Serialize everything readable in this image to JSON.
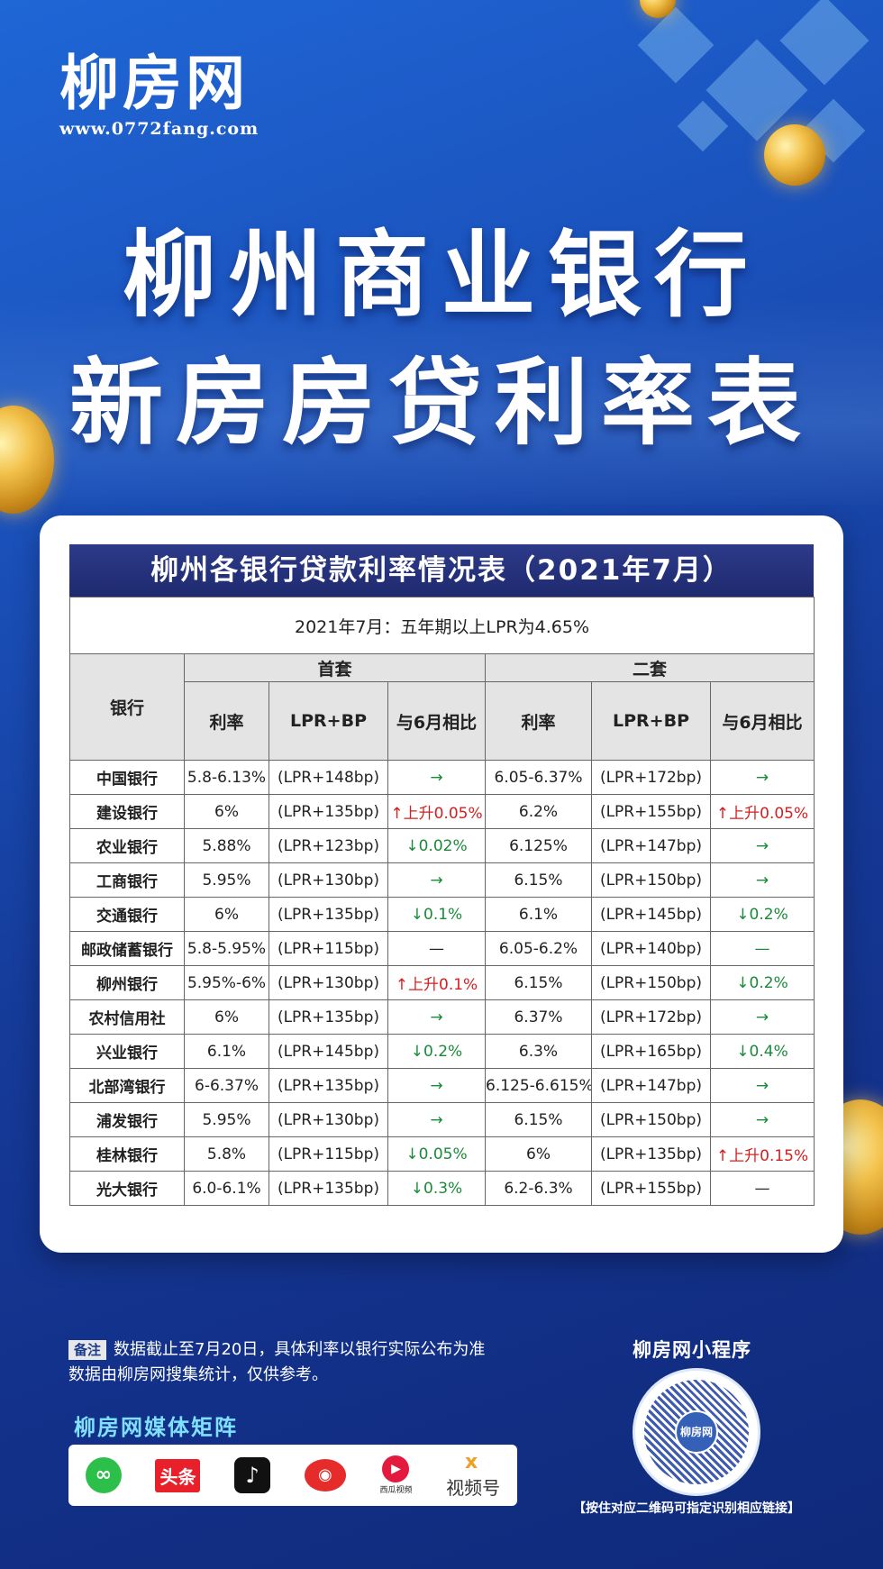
{
  "brand": {
    "name": "柳房网",
    "url": "www.0772fang.com"
  },
  "headline": {
    "line1": "柳州商业银行",
    "line2": "新房房贷利率表"
  },
  "table": {
    "title": "柳州各银行贷款利率情况表（2021年7月）",
    "lpr_note": "2021年7月：五年期以上LPR为4.65%",
    "col_bank": "银行",
    "group_first": "首套",
    "group_second": "二套",
    "col_rate": "利率",
    "col_lpr_bp": "LPR+BP",
    "col_compare": "与6月相比",
    "rows": [
      {
        "bank": "中国银行",
        "r1": "5.8-6.13%",
        "b1": "(LPR+148bp)",
        "c1": "→",
        "t1": "flat",
        "r2": "6.05-6.37%",
        "b2": "(LPR+172bp)",
        "c2": "→",
        "t2": "flat"
      },
      {
        "bank": "建设银行",
        "r1": "6%",
        "b1": "(LPR+135bp)",
        "c1": "↑上升0.05%",
        "t1": "up",
        "r2": "6.2%",
        "b2": "(LPR+155bp)",
        "c2": "↑上升0.05%",
        "t2": "up"
      },
      {
        "bank": "农业银行",
        "r1": "5.88%",
        "b1": "(LPR+123bp)",
        "c1": "↓0.02%",
        "t1": "down",
        "r2": "6.125%",
        "b2": "(LPR+147bp)",
        "c2": "→",
        "t2": "flat"
      },
      {
        "bank": "工商银行",
        "r1": "5.95%",
        "b1": "(LPR+130bp)",
        "c1": "→",
        "t1": "flat",
        "r2": "6.15%",
        "b2": "(LPR+150bp)",
        "c2": "→",
        "t2": "flat"
      },
      {
        "bank": "交通银行",
        "r1": "6%",
        "b1": "(LPR+135bp)",
        "c1": "↓0.1%",
        "t1": "down",
        "r2": "6.1%",
        "b2": "(LPR+145bp)",
        "c2": "↓0.2%",
        "t2": "down"
      },
      {
        "bank": "邮政储蓄银行",
        "r1": "5.8-5.95%",
        "b1": "(LPR+115bp)",
        "c1": "—",
        "t1": "dash",
        "r2": "6.05-6.2%",
        "b2": "(LPR+140bp)",
        "c2": "—",
        "t2": "flat"
      },
      {
        "bank": "柳州银行",
        "r1": "5.95%-6%",
        "b1": "(LPR+130bp)",
        "c1": "↑上升0.1%",
        "t1": "up",
        "r2": "6.15%",
        "b2": "(LPR+150bp)",
        "c2": "↓0.2%",
        "t2": "down"
      },
      {
        "bank": "农村信用社",
        "r1": "6%",
        "b1": "(LPR+135bp)",
        "c1": "→",
        "t1": "flat",
        "r2": "6.37%",
        "b2": "(LPR+172bp)",
        "c2": "→",
        "t2": "flat"
      },
      {
        "bank": "兴业银行",
        "r1": "6.1%",
        "b1": "(LPR+145bp)",
        "c1": "↓0.2%",
        "t1": "down",
        "r2": "6.3%",
        "b2": "(LPR+165bp)",
        "c2": "↓0.4%",
        "t2": "down"
      },
      {
        "bank": "北部湾银行",
        "r1": "6-6.37%",
        "b1": "(LPR+135bp)",
        "c1": "→",
        "t1": "flat",
        "r2": "6.125-6.615%",
        "b2": "(LPR+147bp)",
        "c2": "→",
        "t2": "flat"
      },
      {
        "bank": "浦发银行",
        "r1": "5.95%",
        "b1": "(LPR+130bp)",
        "c1": "→",
        "t1": "flat",
        "r2": "6.15%",
        "b2": "(LPR+150bp)",
        "c2": "→",
        "t2": "flat"
      },
      {
        "bank": "桂林银行",
        "r1": "5.8%",
        "b1": "(LPR+115bp)",
        "c1": "↓0.05%",
        "t1": "down",
        "r2": "6%",
        "b2": "(LPR+135bp)",
        "c2": "↑上升0.15%",
        "t2": "up"
      },
      {
        "bank": "光大银行",
        "r1": "6.0-6.1%",
        "b1": "(LPR+135bp)",
        "c1": "↓0.3%",
        "t1": "down",
        "r2": "6.2-6.3%",
        "b2": "(LPR+155bp)",
        "c2": "—",
        "t2": "dash"
      }
    ]
  },
  "note": {
    "tag": "备注",
    "line1": "数据截止至7月20日，具体利率以银行实际公布为准",
    "line2": "数据由柳房网搜集统计，仅供参考。"
  },
  "media": {
    "title": "柳房网媒体矩阵",
    "toutiao": "头条",
    "xigua": "西瓜视频",
    "shipinhao": "视频号"
  },
  "mini_program": {
    "title": "柳房网小程序",
    "caption": "【按住对应二维码可指定识别相应链接】",
    "qr_logo": "柳房网"
  }
}
